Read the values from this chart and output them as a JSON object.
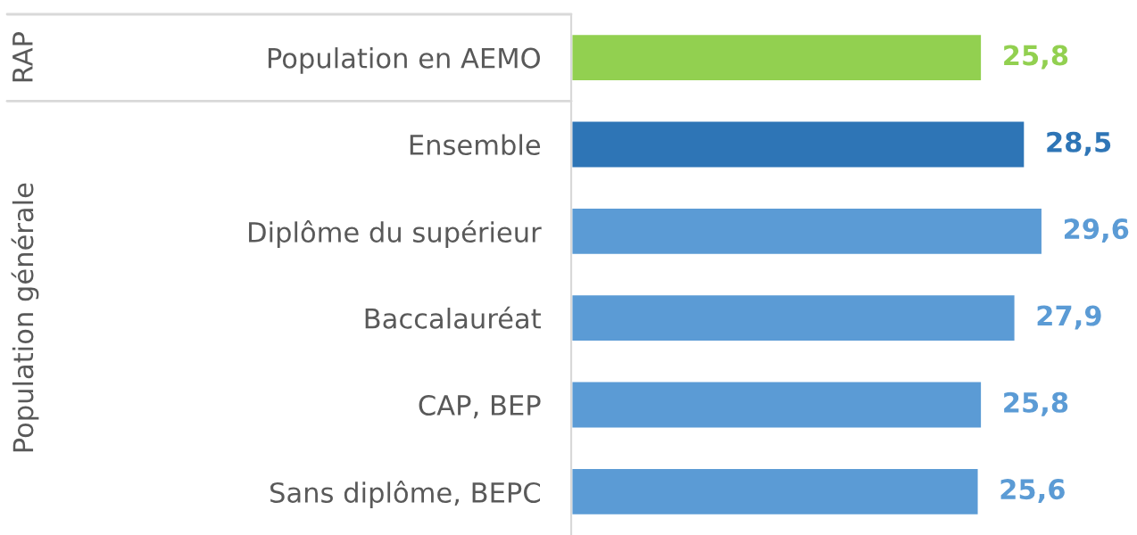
{
  "chart_data": {
    "type": "bar",
    "orientation": "horizontal",
    "categories": [
      "Population en AEMO",
      "Ensemble",
      "Diplôme du supérieur",
      "Baccalauréat",
      "CAP, BEP",
      "Sans diplôme, BEPC"
    ],
    "values": [
      25.8,
      28.5,
      29.6,
      27.9,
      25.8,
      25.6
    ],
    "colors": [
      "#92d050",
      "#2e75b6",
      "#5b9bd5",
      "#5b9bd5",
      "#5b9bd5",
      "#5b9bd5"
    ],
    "value_labels": [
      "25,8",
      "28,5",
      "29,6",
      "27,9",
      "25,8",
      "25,6"
    ],
    "tick_labels": "y",
    "annotations": [
      "RAP",
      "Population générale"
    ]
  }
}
